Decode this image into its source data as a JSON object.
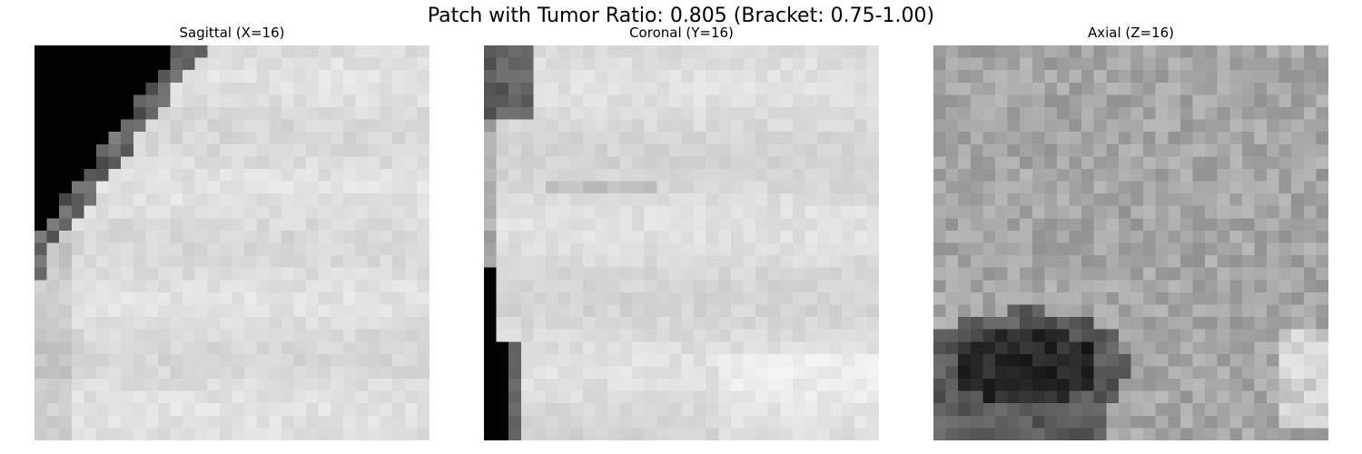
{
  "figure": {
    "suptitle": "Patch with Tumor Ratio: 0.805 (Bracket: 0.75-1.00)"
  },
  "panels": [
    {
      "id": "sagittal",
      "title": "Sagittal (X=16)",
      "image_description": "32x32 grayscale MRI slice, mostly light gray, black background wedge at top-left with diagonal boundary"
    },
    {
      "id": "coronal",
      "title": "Coronal (Y=16)",
      "image_description": "32x32 grayscale MRI slice, mostly light gray, dark band along left edge"
    },
    {
      "id": "axial",
      "title": "Axial (Z=16)",
      "image_description": "32x32 grayscale MRI slice, mid gray texture with dark region at bottom-left"
    }
  ],
  "colormap": "gray"
}
